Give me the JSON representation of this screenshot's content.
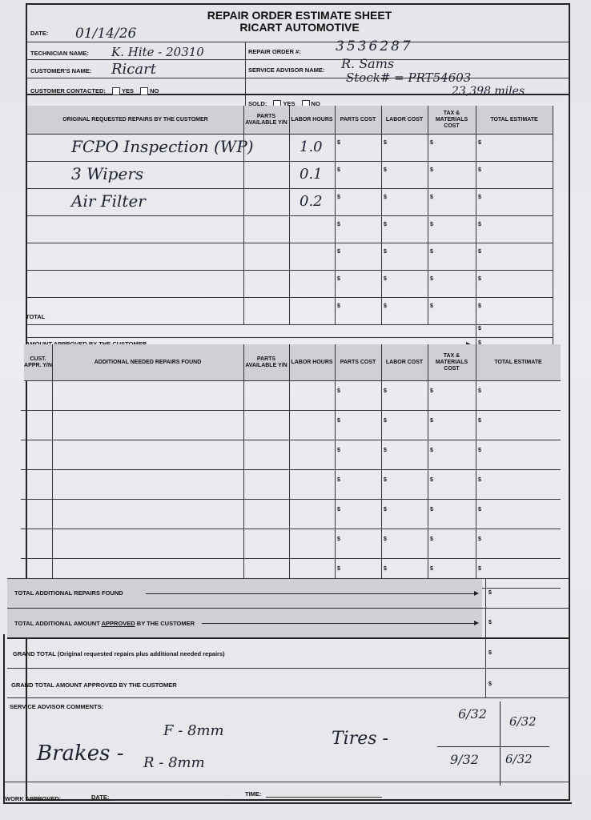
{
  "header": {
    "title": "REPAIR ORDER ESTIMATE SHEET",
    "company": "RICART AUTOMOTIVE"
  },
  "info": {
    "date_label": "DATE:",
    "date_value": "01/14/26",
    "technician_label": "TECHNICIAN NAME:",
    "technician_value": "K. Hite - 20310",
    "customer_label": "CUSTOMER'S NAME:",
    "customer_value": "Ricart",
    "contacted_label": "CUSTOMER CONTACTED:",
    "yes_label": "YES",
    "no_label": "NO",
    "repair_order_label": "REPAIR ORDER #:",
    "repair_order_value": "3536287",
    "advisor_label": "SERVICE ADVISOR NAME:",
    "advisor_value": "R. Sams",
    "stock_note": "Stock# = PRT54603",
    "miles_note": "23,398 miles",
    "sold_label": "SOLD:"
  },
  "original_table": {
    "headers": [
      "ORIGINAL REQUESTED REPAIRS BY THE CUSTOMER",
      "PARTS AVAILABLE Y/N",
      "LABOR HOURS",
      "PARTS COST",
      "LABOR COST",
      "TAX & MATERIALS COST",
      "TOTAL ESTIMATE"
    ],
    "rows": [
      {
        "repair": "FCPO Inspection (WP)",
        "labor_hours": "1.0"
      },
      {
        "repair": "3 Wipers",
        "labor_hours": "0.1"
      },
      {
        "repair": "Air Filter",
        "labor_hours": "0.2"
      },
      {
        "repair": "",
        "labor_hours": ""
      },
      {
        "repair": "",
        "labor_hours": ""
      },
      {
        "repair": "",
        "labor_hours": ""
      },
      {
        "repair": "",
        "labor_hours": ""
      }
    ],
    "currency": "$",
    "total_label": "TOTAL",
    "approved_label": "AMOUNT APPROVED BY THE CUSTOMER"
  },
  "additional_table": {
    "headers": [
      "CUST. APPR. Y/N",
      "ADDITIONAL NEEDED REPAIRS FOUND",
      "PARTS AVAILABLE Y/N",
      "LABOR HOURS",
      "PARTS COST",
      "LABOR COST",
      "TAX & MATERIALS COST",
      "TOTAL ESTIMATE"
    ],
    "row_count": 7
  },
  "totals": {
    "additional_found": "TOTAL ADDITIONAL REPAIRS FOUND",
    "additional_approved_prefix": "TOTAL ADDITIONAL AMOUNT ",
    "additional_approved_underlined": "APPROVED",
    "additional_approved_suffix": " BY THE CUSTOMER",
    "grand_total": "GRAND TOTAL (Original requested repairs plus additional needed repairs)",
    "grand_total_approved": "GRAND TOTAL AMOUNT APPROVED BY THE CUSTOMER"
  },
  "comments": {
    "label": "SERVICE ADVISOR COMMENTS:",
    "brakes": "Brakes -",
    "brake_front": "F - 8mm",
    "brake_rear": "R - 8mm",
    "tires": "Tires -",
    "tire_fl": "6/32",
    "tire_fr": "6/32",
    "tire_rl": "9/32",
    "tire_rr": "6/32"
  },
  "footer": {
    "work_approved": "WORK APPROVED:",
    "date_label": "DATE:",
    "time_label": "TIME:"
  }
}
